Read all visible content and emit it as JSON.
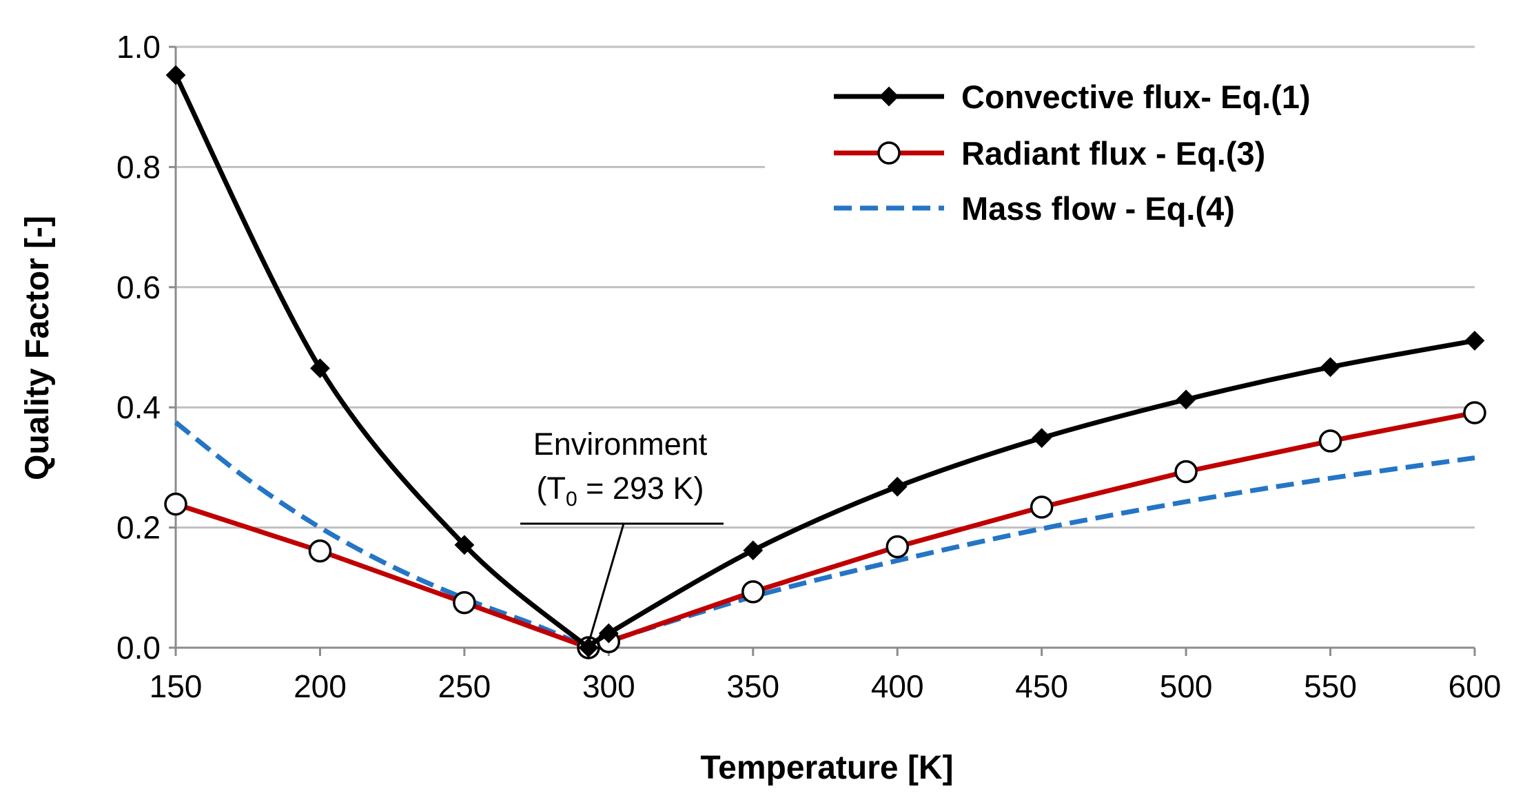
{
  "chart_data": {
    "type": "line",
    "title": "",
    "xlabel": "Temperature [K]",
    "ylabel": "Quality Factor [-]",
    "xlim": [
      150,
      600
    ],
    "ylim": [
      0,
      1.0
    ],
    "grid": true,
    "legend_position": "top-right",
    "x_ticks": [
      150,
      200,
      250,
      300,
      350,
      400,
      450,
      500,
      550,
      600
    ],
    "x_tick_labels": [
      "150",
      "200",
      "250",
      "300",
      "350",
      "400",
      "450",
      "500",
      "550",
      "600"
    ],
    "y_ticks": [
      0,
      0.2,
      0.4,
      0.6,
      0.8,
      1.0
    ],
    "y_tick_labels": [
      "0.0",
      "0.2",
      "0.4",
      "0.6",
      "0.8",
      "1.0"
    ],
    "series": [
      {
        "name": "Convective flux- Eq.(1)",
        "color": "#000000",
        "style": "solid",
        "marker": "diamond",
        "x": [
          150,
          200,
          250,
          293,
          300,
          350,
          400,
          450,
          500,
          550,
          600
        ],
        "values": [
          0.953,
          0.465,
          0.171,
          0.0,
          0.024,
          0.162,
          0.268,
          0.349,
          0.413,
          0.467,
          0.511
        ]
      },
      {
        "name": "Radiant flux - Eq.(3)",
        "color": "#c00000",
        "style": "solid",
        "marker": "open-circle",
        "x": [
          150,
          200,
          250,
          293,
          300,
          350,
          400,
          450,
          500,
          550,
          600
        ],
        "values": [
          0.239,
          0.161,
          0.075,
          0.0,
          0.01,
          0.093,
          0.168,
          0.234,
          0.293,
          0.344,
          0.391
        ]
      },
      {
        "name": "Mass flow - Eq.(4)",
        "color": "#2475c6",
        "style": "dashed",
        "marker": "none",
        "x": [
          150,
          175,
          200,
          225,
          250,
          275,
          293,
          300,
          350,
          400,
          450,
          500,
          550,
          600
        ],
        "values": [
          0.375,
          0.28,
          0.2,
          0.135,
          0.082,
          0.037,
          0.0,
          0.011,
          0.085,
          0.145,
          0.198,
          0.243,
          0.282,
          0.316
        ]
      }
    ],
    "annotations": [
      {
        "line1": "Environment",
        "line2_prefix": "(T",
        "line2_subscript": "0",
        "line2_suffix": " = 293 K)",
        "points_to_x": 293,
        "points_to_y": 0.0
      }
    ]
  }
}
